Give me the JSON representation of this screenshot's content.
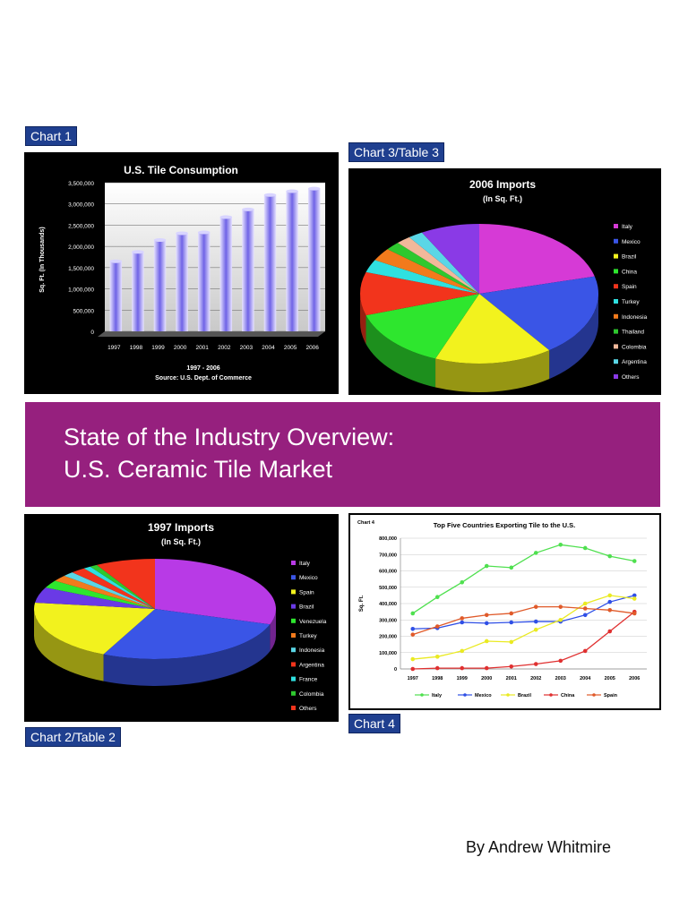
{
  "labels": {
    "chart1": "Chart 1",
    "chart3": "Chart 3/Table 3",
    "chart2": "Chart 2/Table 2",
    "chart4": "Chart 4"
  },
  "banner": {
    "line1": "State of the Industry Overview:",
    "line2": "U.S. Ceramic Tile Market"
  },
  "byline": "By Andrew Whitmire",
  "colors": {
    "banner": "#96207e",
    "tag": "#1f3f8f"
  },
  "chart_data": [
    {
      "id": "chart1",
      "type": "bar",
      "title": "U.S. Tile Consumption",
      "ylabel": "Sq. Ft. (In Thousands)",
      "xlabel": "1997 - 2006",
      "source": "Source: U.S. Dept. of Commerce",
      "categories": [
        "1997",
        "1998",
        "1999",
        "2000",
        "2001",
        "2002",
        "2003",
        "2004",
        "2005",
        "2006"
      ],
      "values": [
        1650000,
        1870000,
        2150000,
        2310000,
        2330000,
        2690000,
        2870000,
        3210000,
        3300000,
        3360000
      ],
      "ylim": [
        0,
        3500000
      ],
      "yticks": [
        "3,500,000",
        "3,000,000",
        "2,500,000",
        "2,000,000",
        "1,500,000",
        "1,000,000",
        "500,000",
        "0"
      ],
      "grid": true
    },
    {
      "id": "chart3",
      "type": "pie",
      "title": "2006 Imports",
      "subtitle": "(In Sq. Ft.)",
      "legend": "right",
      "slices": [
        {
          "name": "Italy",
          "value": 21,
          "color": "#d63ad6"
        },
        {
          "name": "Mexico",
          "value": 19,
          "color": "#3a55e6"
        },
        {
          "name": "Brazil",
          "value": 16,
          "color": "#f2f21e"
        },
        {
          "name": "China",
          "value": 14,
          "color": "#2ee62e"
        },
        {
          "name": "Spain",
          "value": 10,
          "color": "#f2341c"
        },
        {
          "name": "Turkey",
          "value": 3,
          "color": "#2fe0e0"
        },
        {
          "name": "Indonesia",
          "value": 3,
          "color": "#f27a1c"
        },
        {
          "name": "Thailand",
          "value": 2,
          "color": "#2ec82e"
        },
        {
          "name": "Colombia",
          "value": 2,
          "color": "#f2b89a"
        },
        {
          "name": "Argentina",
          "value": 2,
          "color": "#5ad6e6"
        },
        {
          "name": "Others",
          "value": 8,
          "color": "#8a3ae6"
        }
      ]
    },
    {
      "id": "chart2",
      "type": "pie",
      "title": "1997 Imports",
      "subtitle": "(In Sq. Ft.)",
      "legend": "right",
      "slices": [
        {
          "name": "Italy",
          "value": 30,
          "color": "#b83ae6"
        },
        {
          "name": "Mexico",
          "value": 27,
          "color": "#3a55e6"
        },
        {
          "name": "Spain",
          "value": 20,
          "color": "#f2f21e"
        },
        {
          "name": "Brazil",
          "value": 5,
          "color": "#6a3ae6"
        },
        {
          "name": "Venezuela",
          "value": 2.5,
          "color": "#2ee62e"
        },
        {
          "name": "Turkey",
          "value": 2,
          "color": "#f27a1c"
        },
        {
          "name": "Indonesia",
          "value": 1.5,
          "color": "#5ad6e6"
        },
        {
          "name": "Argentina",
          "value": 2,
          "color": "#f2341c"
        },
        {
          "name": "France",
          "value": 1,
          "color": "#2fe0e0"
        },
        {
          "name": "Colombia",
          "value": 1,
          "color": "#2ec82e"
        },
        {
          "name": "Others",
          "value": 8,
          "color": "#f2341c"
        }
      ]
    },
    {
      "id": "chart4",
      "type": "line",
      "label": "Chart 4",
      "title": "Top Five Countries Exporting Tile to the U.S.",
      "ylabel": "Sq. Ft.",
      "x": [
        "1997",
        "1998",
        "1999",
        "2000",
        "2001",
        "2002",
        "2003",
        "2004",
        "2005",
        "2006"
      ],
      "ylim": [
        0,
        800000
      ],
      "yticks": [
        "800,000",
        "700,000",
        "600,000",
        "500,000",
        "400,000",
        "300,000",
        "200,000",
        "100,000",
        "0"
      ],
      "grid": true,
      "legend": "bottom",
      "series": [
        {
          "name": "Italy",
          "color": "#4fe04f",
          "values": [
            340000,
            440000,
            530000,
            630000,
            620000,
            710000,
            760000,
            740000,
            690000,
            660000
          ]
        },
        {
          "name": "Mexico",
          "color": "#2f4fe6",
          "values": [
            245000,
            250000,
            285000,
            280000,
            285000,
            290000,
            290000,
            330000,
            410000,
            450000
          ]
        },
        {
          "name": "Brazil",
          "color": "#eaea22",
          "values": [
            60000,
            75000,
            110000,
            170000,
            165000,
            240000,
            300000,
            400000,
            450000,
            430000
          ]
        },
        {
          "name": "China",
          "color": "#e03030",
          "values": [
            0,
            5000,
            5000,
            5000,
            15000,
            30000,
            50000,
            110000,
            230000,
            350000
          ]
        },
        {
          "name": "Spain",
          "color": "#e05a2a",
          "values": [
            210000,
            260000,
            310000,
            330000,
            340000,
            380000,
            380000,
            370000,
            360000,
            340000
          ]
        }
      ]
    }
  ]
}
